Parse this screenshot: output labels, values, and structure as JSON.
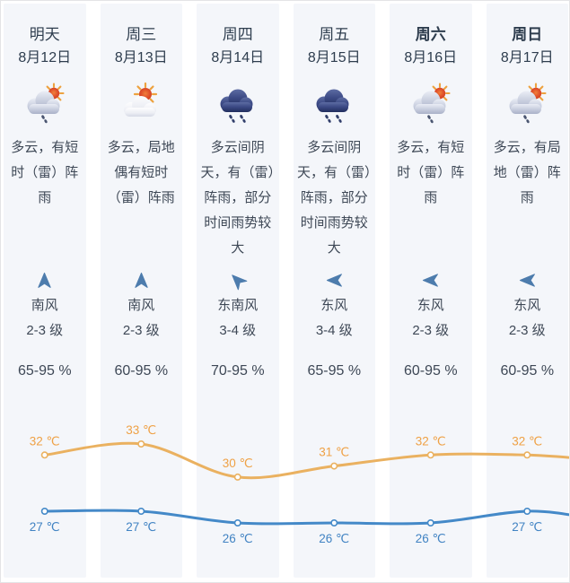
{
  "colors": {
    "column_bg": "#f4f6fa",
    "text_primary": "#2e3d4e",
    "text_secondary": "#3e4856",
    "wind_arrow": "#4d7cad",
    "high_line": "#eab160",
    "high_label": "#efa145",
    "low_line": "#4489c8",
    "low_label": "#4183c3"
  },
  "columns": [
    {
      "day": "明天",
      "date": "8月12日",
      "weekend": false,
      "icon": "sun-shower",
      "desc": "多云，有短时（雷）阵雨",
      "wind_dir": "南风",
      "wind_level": "2-3 级",
      "wind_arrow": "N",
      "humidity": "65-95 %"
    },
    {
      "day": "周三",
      "date": "8月13日",
      "weekend": false,
      "icon": "sun-cloud",
      "desc": "多云，局地偶有短时（雷）阵雨",
      "wind_dir": "南风",
      "wind_level": "2-3 级",
      "wind_arrow": "N",
      "humidity": "60-95 %"
    },
    {
      "day": "周四",
      "date": "8月14日",
      "weekend": false,
      "icon": "rain",
      "desc": "多云间阴天，有（雷）阵雨，部分时间雨势较大",
      "wind_dir": "东南风",
      "wind_level": "3-4 级",
      "wind_arrow": "NW",
      "humidity": "70-95 %"
    },
    {
      "day": "周五",
      "date": "8月15日",
      "weekend": false,
      "icon": "rain",
      "desc": "多云间阴天，有（雷）阵雨，部分时间雨势较大",
      "wind_dir": "东风",
      "wind_level": "3-4 级",
      "wind_arrow": "W",
      "humidity": "65-95 %"
    },
    {
      "day": "周六",
      "date": "8月16日",
      "weekend": true,
      "icon": "sun-shower",
      "desc": "多云，有短时（雷）阵雨",
      "wind_dir": "东风",
      "wind_level": "2-3 级",
      "wind_arrow": "W",
      "humidity": "60-95 %"
    },
    {
      "day": "周日",
      "date": "8月17日",
      "weekend": true,
      "icon": "sun-shower",
      "desc": "多云，有局地（雷）阵雨",
      "wind_dir": "东风",
      "wind_level": "2-3 级",
      "wind_arrow": "W",
      "humidity": "60-95 %"
    }
  ],
  "chart_data": {
    "type": "line",
    "categories": [
      "8月12日",
      "8月13日",
      "8月14日",
      "8月15日",
      "8月16日",
      "8月17日"
    ],
    "series": [
      {
        "name": "high_temp",
        "values": [
          32,
          33,
          30,
          31,
          32,
          32
        ],
        "color": "#eab160",
        "label_color": "#efa145"
      },
      {
        "name": "low_temp",
        "values": [
          27,
          27,
          26,
          26,
          26,
          27
        ],
        "color": "#4489c8",
        "label_color": "#4183c3"
      }
    ],
    "unit": "℃",
    "label_format": "{value} ℃",
    "grid": false,
    "legend": "none"
  }
}
